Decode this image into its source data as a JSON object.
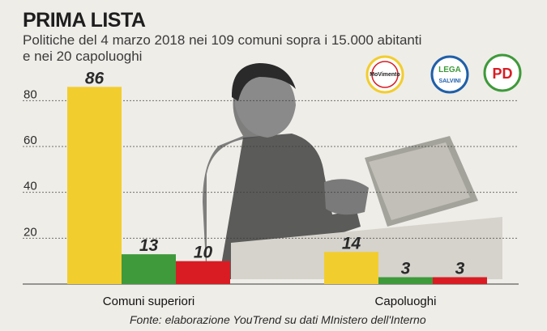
{
  "chart_data": {
    "type": "bar",
    "title": "PRIMA LISTA",
    "subtitle_lines": [
      "Politiche del 4 marzo 2018 nei 109 comuni sopra i 15.000 abitanti",
      "e nei 20 capoluoghi"
    ],
    "categories": [
      "Comuni superiori",
      "Capoluoghi"
    ],
    "series": [
      {
        "values": [
          86,
          14
        ],
        "color": "#f2cd2e"
      },
      {
        "values": [
          13,
          3
        ],
        "color": "#3e9a3a"
      },
      {
        "values": [
          10,
          3
        ],
        "color": "#d91c24"
      }
    ],
    "y_ticks": [
      "20",
      "40",
      "60",
      "80"
    ],
    "ylim": [
      0,
      90
    ],
    "grid": true,
    "source": "Fonte: elaborazione YouTrend su dati MInistero dell'Interno"
  },
  "logos": [
    {
      "icon": "movimento-5-stelle-logo",
      "text": "MoVimento",
      "color": "#f2cd2e"
    },
    {
      "icon": "lega-salvini-logo",
      "text": "LEGA",
      "text2": "SALVINI",
      "color": "#1f5fa8"
    },
    {
      "icon": "pd-logo",
      "text": "PD",
      "color": "#d91c24"
    }
  ]
}
